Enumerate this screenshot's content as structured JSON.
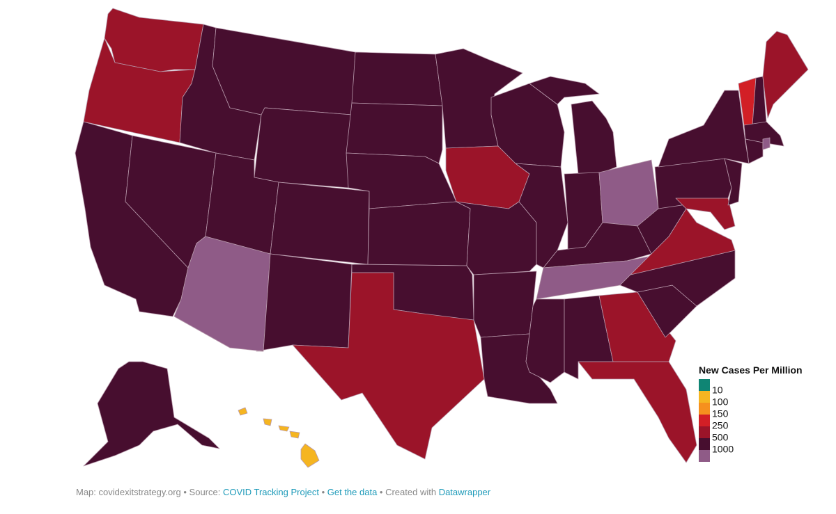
{
  "map": {
    "legend": {
      "title": "New Cases Per Million",
      "swatches": [
        "#0f8574",
        "#f5b521",
        "#f6901e",
        "#d21f26",
        "#9b1429",
        "#470e2f",
        "#8f5b87"
      ],
      "labels": [
        10,
        100,
        150,
        250,
        500,
        1000
      ]
    }
  },
  "footer": {
    "parts": [
      {
        "text": "Map: covidexitstrategy.org • Source: ",
        "link": false
      },
      {
        "text": "COVID Tracking Project",
        "link": true
      },
      {
        "text": " • ",
        "link": false
      },
      {
        "text": "Get the data",
        "link": true
      },
      {
        "text": " • Created with ",
        "link": false
      },
      {
        "text": "Datawrapper",
        "link": true
      }
    ]
  }
}
